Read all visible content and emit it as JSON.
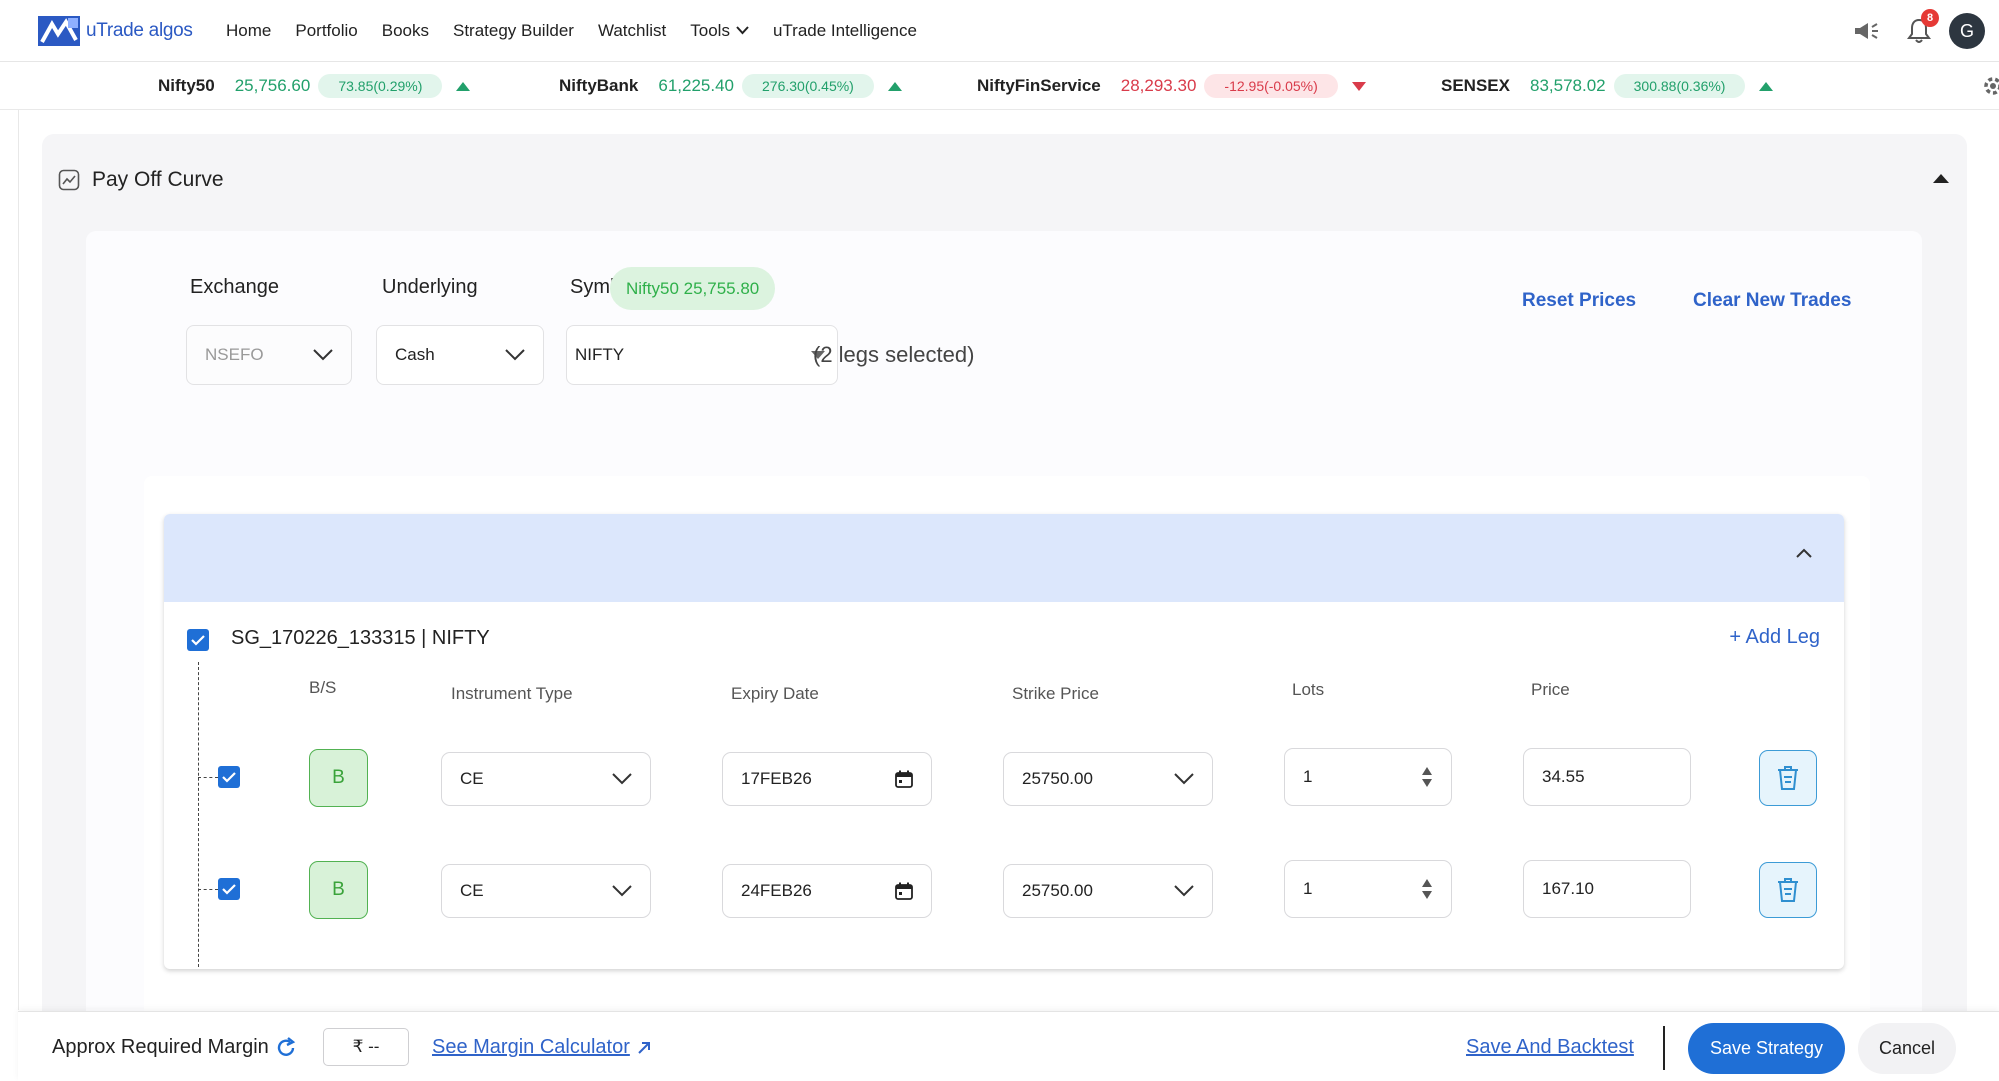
{
  "app": {
    "logo_text": "uTrade algos"
  },
  "nav": {
    "links": [
      "Home",
      "Portfolio",
      "Books",
      "Strategy Builder",
      "Watchlist",
      "Tools",
      "uTrade Intelligence"
    ],
    "notification_count": "8",
    "avatar_initial": "G"
  },
  "ticker": [
    {
      "name": "Nifty50",
      "value": "25,756.60",
      "change": "73.85(0.29%)",
      "direction": "up"
    },
    {
      "name": "NiftyBank",
      "value": "61,225.40",
      "change": "276.30(0.45%)",
      "direction": "up"
    },
    {
      "name": "NiftyFinService",
      "value": "28,293.30",
      "change": "-12.95(-0.05%)",
      "direction": "down"
    },
    {
      "name": "SENSEX",
      "value": "83,578.02",
      "change": "300.88(0.36%)",
      "direction": "up"
    }
  ],
  "payoff": {
    "title": "Pay Off Curve",
    "exchange_label": "Exchange",
    "underlying_label": "Underlying",
    "symbol_label": "Symbol",
    "symbol_chip": "Nifty50 25,755.80",
    "exchange_value": "NSEFO",
    "underlying_value": "Cash",
    "symbol_value": "NIFTY",
    "legs_selected": "(2 legs selected)",
    "reset_prices": "Reset Prices",
    "clear_trades": "Clear New Trades"
  },
  "group": {
    "title": "SG_170226_133315 | NIFTY",
    "add_leg": "+ Add Leg",
    "columns": [
      "B/S",
      "Instrument Type",
      "Expiry Date",
      "Strike Price",
      "Lots",
      "Price"
    ],
    "legs": [
      {
        "side": "B",
        "instrument": "CE",
        "expiry": "17FEB26",
        "strike": "25750.00",
        "lots": "1",
        "price": "34.55"
      },
      {
        "side": "B",
        "instrument": "CE",
        "expiry": "24FEB26",
        "strike": "25750.00",
        "lots": "1",
        "price": "167.10"
      }
    ]
  },
  "footer": {
    "margin_label": "Approx Required Margin",
    "margin_value": "₹ --",
    "margin_calc": "See Margin Calculator",
    "save_backtest": "Save And Backtest",
    "save_strategy": "Save Strategy",
    "cancel": "Cancel"
  },
  "colors": {
    "accent": "#1f6fd6",
    "up": "#22a06b",
    "down": "#d93b4a",
    "buy": "#3aa33a",
    "band": "#dce7fc"
  }
}
